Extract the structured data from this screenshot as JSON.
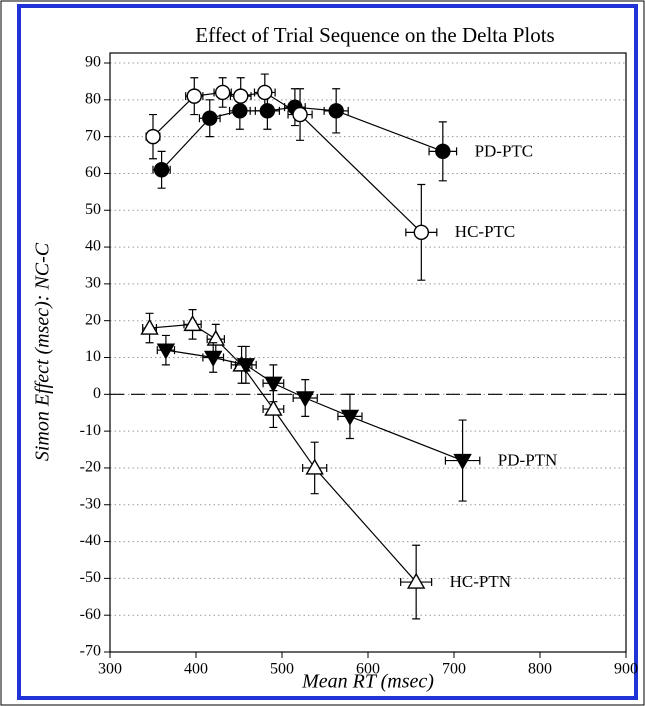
{
  "chart_data": {
    "type": "scatter",
    "title": "Effect of Trial Sequence on the Delta Plots",
    "x_label": "Mean RT (msec)",
    "y_label": "Simon Effect (msec): NC-C",
    "xlim": [
      300,
      900
    ],
    "xticks": [
      300,
      400,
      500,
      600,
      700,
      800,
      900
    ],
    "ylim": [
      -70,
      90
    ],
    "yticks": [
      -70,
      -60,
      -50,
      -40,
      -30,
      -20,
      -10,
      0,
      10,
      20,
      30,
      40,
      50,
      60,
      70,
      80,
      90
    ],
    "grid": true,
    "reference_line": 0,
    "series": [
      {
        "name": "PD-PTC",
        "marker": "circle",
        "filled": true,
        "color": "#000000",
        "x": [
          360,
          416,
          451,
          483,
          515,
          563,
          687
        ],
        "values": [
          61,
          75,
          77,
          77,
          78,
          77,
          66
        ],
        "xerr": [
          10,
          12,
          12,
          14,
          12,
          14,
          16
        ],
        "yerr": [
          5,
          5,
          5,
          5,
          5,
          6,
          8
        ]
      },
      {
        "name": "HC-PTC",
        "marker": "circle",
        "filled": false,
        "color": "#000000",
        "x": [
          350,
          398,
          431,
          452,
          480,
          521,
          662
        ],
        "values": [
          70,
          81,
          82,
          81,
          82,
          76,
          44
        ],
        "xerr": [
          8,
          10,
          10,
          12,
          12,
          14,
          18
        ],
        "yerr": [
          6,
          5,
          4,
          5,
          5,
          7,
          13
        ]
      },
      {
        "name": "HC-PTN",
        "marker": "triangle-up",
        "filled": false,
        "color": "#000000",
        "x": [
          346,
          396,
          423,
          453,
          490,
          538,
          656
        ],
        "values": [
          18,
          19,
          15,
          8,
          -4,
          -20,
          -51
        ],
        "xerr": [
          8,
          10,
          10,
          12,
          12,
          14,
          18
        ],
        "yerr": [
          4,
          4,
          4,
          5,
          5,
          7,
          10
        ]
      },
      {
        "name": "PD-PTN",
        "marker": "triangle-down",
        "filled": true,
        "color": "#000000",
        "x": [
          365,
          420,
          458,
          490,
          527,
          579,
          710
        ],
        "values": [
          12,
          10,
          8,
          3,
          -1,
          -6,
          -18
        ],
        "xerr": [
          10,
          12,
          12,
          12,
          14,
          14,
          20
        ],
        "yerr": [
          4,
          4,
          5,
          5,
          5,
          6,
          11
        ]
      }
    ]
  }
}
